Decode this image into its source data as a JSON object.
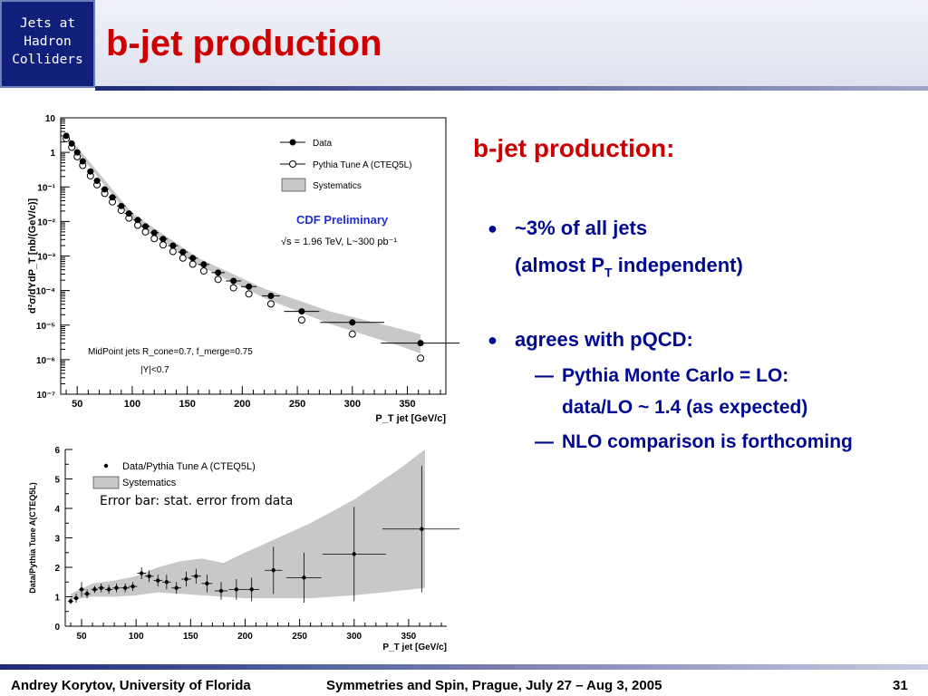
{
  "header": {
    "badge_lines": [
      "Jets at",
      "Hadron",
      "Colliders"
    ],
    "title": "b-jet production"
  },
  "right_panel": {
    "title": "b-jet production:",
    "bullets": [
      {
        "text": "~3% of all jets",
        "sub": "(almost P",
        "sub_sub": "T",
        "sub_end": " independent)"
      },
      {
        "text": "agrees with pQCD:",
        "items": [
          {
            "dash": "—",
            "line1": "Pythia Monte Carlo = LO:",
            "line2": "data/LO ~ 1.4 (as expected)"
          },
          {
            "dash": "—",
            "line1": "NLO comparison is forthcoming"
          }
        ]
      }
    ]
  },
  "footer": {
    "author": "Andrey Korytov, University of Florida",
    "event": "Symmetries and Spin, Prague, July 27 – Aug 3, 2005",
    "page": "31"
  },
  "colors": {
    "accent_red": "#cc0000",
    "text_blue": "#000a8f",
    "badge_bg": "#10207a"
  },
  "chart_data": [
    {
      "type": "scatter",
      "log_y": true,
      "xlim": [
        35,
        385
      ],
      "ylim_exp": [
        -7,
        1
      ],
      "x_ticks": [
        50,
        100,
        150,
        200,
        250,
        300,
        350
      ],
      "y_tick_labels": [
        "10",
        "1",
        "10⁻¹",
        "10⁻²",
        "10⁻³",
        "10⁻⁴",
        "10⁻⁵",
        "10⁻⁶",
        "10⁻⁷"
      ],
      "xlabel": "P_T jet [GeV/c]",
      "ylabel": "d²σ/dYdP_T [nb/(GeV/c)]",
      "legend": [
        "Data",
        "Pythia Tune A (CTEQ5L)",
        "Systematics"
      ],
      "annotations": [
        "CDF Preliminary",
        "√s = 1.96 TeV, L~300 pb⁻¹",
        "MidPoint jets R_cone=0.7, f_merge=0.75",
        "|Y|<0.7"
      ],
      "series": [
        {
          "name": "Data",
          "x": [
            40,
            45,
            50,
            55,
            62,
            68,
            75,
            82,
            90,
            97,
            105,
            112,
            120,
            128,
            137,
            146,
            155,
            165,
            178,
            192,
            206,
            226,
            254,
            300,
            362
          ],
          "y": [
            3.0,
            1.8,
            1.0,
            0.55,
            0.28,
            0.15,
            0.085,
            0.05,
            0.028,
            0.017,
            0.011,
            0.0072,
            0.0047,
            0.0031,
            0.002,
            0.0013,
            0.00087,
            0.00057,
            0.00033,
            0.00019,
            0.00013,
            7e-05,
            2.5e-05,
            1.2e-05,
            3e-06
          ],
          "xerr": [
            2.5,
            2.5,
            2.5,
            3,
            3,
            3,
            3.5,
            3.5,
            4,
            4,
            4,
            4,
            4,
            4,
            4.5,
            4.5,
            4.5,
            5,
            6,
            7,
            7,
            8,
            16,
            29,
            36
          ]
        },
        {
          "name": "Pythia Tune A (CTEQ5L)",
          "x": [
            40,
            45,
            50,
            55,
            62,
            68,
            75,
            82,
            90,
            97,
            105,
            112,
            120,
            128,
            137,
            146,
            155,
            165,
            178,
            192,
            206,
            226,
            254,
            300,
            362
          ],
          "y": [
            2.5,
            1.4,
            0.75,
            0.42,
            0.21,
            0.115,
            0.065,
            0.037,
            0.021,
            0.0125,
            0.0078,
            0.005,
            0.0032,
            0.0021,
            0.00135,
            0.00087,
            0.00058,
            0.00037,
            0.00021,
            0.00012,
            8e-05,
            4.1e-05,
            1.4e-05,
            5.5e-06,
            1.1e-06
          ]
        }
      ],
      "systematics_band": {
        "x": [
          40,
          100,
          160,
          220,
          280,
          340,
          362
        ],
        "rel_lo": [
          0.85,
          0.8,
          0.78,
          0.72,
          0.65,
          0.55,
          0.5
        ],
        "rel_hi": [
          1.15,
          1.2,
          1.25,
          1.35,
          1.5,
          1.7,
          1.8
        ]
      }
    },
    {
      "type": "scatter",
      "xlim": [
        35,
        385
      ],
      "ylim": [
        0,
        6
      ],
      "x_ticks": [
        50,
        100,
        150,
        200,
        250,
        300,
        350
      ],
      "y_ticks": [
        0,
        1,
        2,
        3,
        4,
        5,
        6
      ],
      "xlabel": "P_T jet [GeV/c]",
      "ylabel": "Data/Pythia Tune A(CTEQ5L)",
      "legend": [
        "Data/Pythia Tune A (CTEQ5L)",
        "Systematics"
      ],
      "annotations": [
        "Error bar: stat. error from data"
      ],
      "series": [
        {
          "name": "Data/Pythia Tune A (CTEQ5L)",
          "x": [
            40,
            45,
            50,
            55,
            62,
            68,
            75,
            82,
            90,
            97,
            105,
            112,
            120,
            128,
            137,
            146,
            155,
            165,
            178,
            192,
            206,
            226,
            254,
            300,
            362
          ],
          "y": [
            0.85,
            0.95,
            1.25,
            1.1,
            1.25,
            1.3,
            1.25,
            1.3,
            1.3,
            1.35,
            1.8,
            1.7,
            1.55,
            1.5,
            1.3,
            1.6,
            1.7,
            1.45,
            1.2,
            1.25,
            1.25,
            1.9,
            1.65,
            2.45,
            3.3
          ],
          "yerr": [
            0.1,
            0.15,
            0.25,
            0.15,
            0.12,
            0.15,
            0.15,
            0.15,
            0.15,
            0.15,
            0.2,
            0.2,
            0.2,
            0.25,
            0.2,
            0.25,
            0.25,
            0.3,
            0.3,
            0.35,
            0.4,
            0.8,
            0.85,
            1.6,
            2.15
          ],
          "xerr": [
            2.5,
            2.5,
            2.5,
            3,
            3,
            3,
            3.5,
            3.5,
            4,
            4,
            4,
            4,
            4,
            4,
            4.5,
            4.5,
            4.5,
            5,
            6,
            7,
            7,
            8,
            16,
            29,
            36
          ]
        }
      ],
      "systematics_band": {
        "x": [
          40,
          60,
          80,
          100,
          120,
          140,
          160,
          180,
          200,
          230,
          260,
          300,
          340,
          365
        ],
        "lo": [
          0.9,
          1.0,
          1.0,
          1.05,
          1.15,
          1.1,
          1.05,
          1.0,
          0.95,
          0.95,
          0.95,
          1.05,
          1.2,
          1.3
        ],
        "hi": [
          1.1,
          1.45,
          1.55,
          1.7,
          2.0,
          2.2,
          2.3,
          2.15,
          2.5,
          3.0,
          3.5,
          4.3,
          5.3,
          6.0
        ]
      }
    }
  ]
}
